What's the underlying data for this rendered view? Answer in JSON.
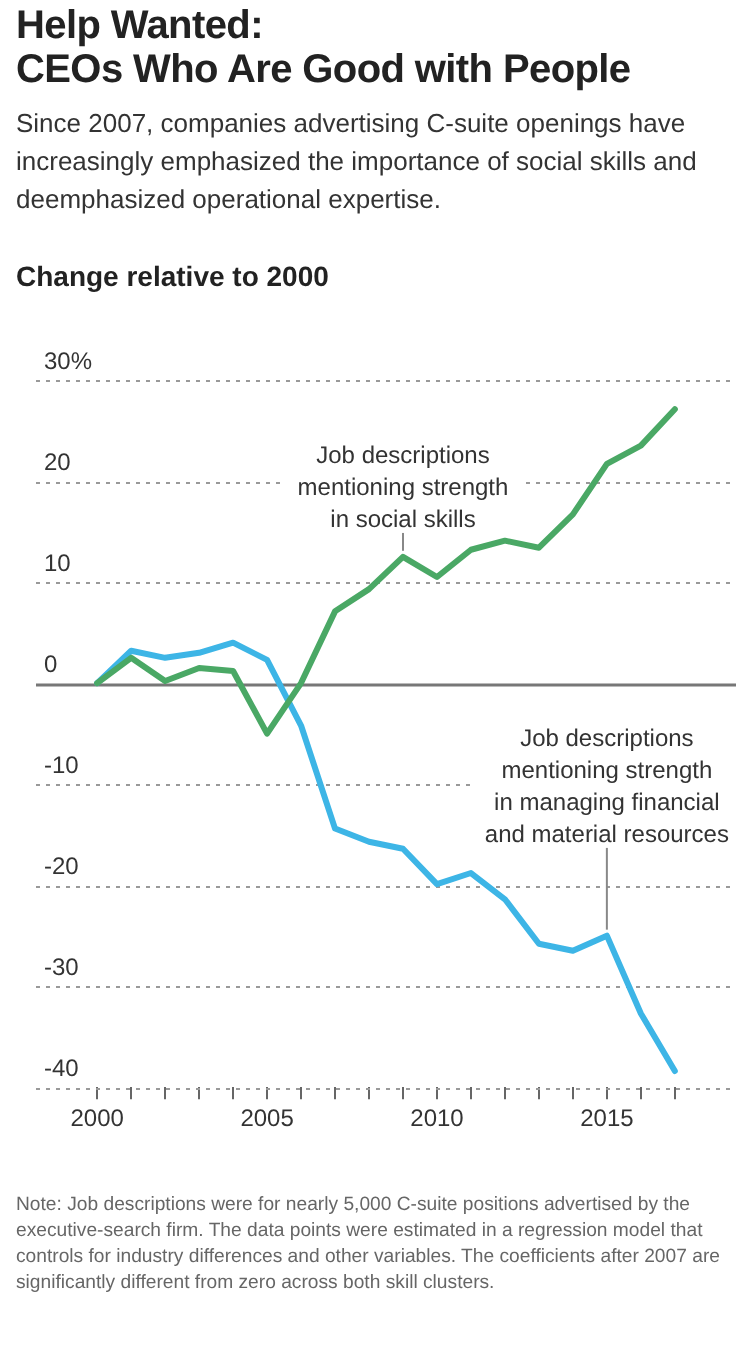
{
  "chart_data": {
    "type": "line",
    "title": "Help Wanted:\nCEOs Who Are Good with People",
    "subtitle": "Since 2007, companies advertising C-suite openings have increasingly emphasized the importance of social skills and deemphasized operational expertise.",
    "ylabel": "Change relative to 2000",
    "x": [
      2000,
      2001,
      2002,
      2003,
      2004,
      2005,
      2006,
      2007,
      2008,
      2009,
      2010,
      2011,
      2012,
      2013,
      2014,
      2015,
      2016,
      2017
    ],
    "series": [
      {
        "color": "#4aa865",
        "values": [
          0,
          2.5,
          0.2,
          1.5,
          1.2,
          -5,
          0,
          7.1,
          9.3,
          12.5,
          10.5,
          13.2,
          14.1,
          13.4,
          16.7,
          21.7,
          23.5,
          27.1
        ]
      },
      {
        "color": "#3db5e6",
        "values": [
          0,
          3.2,
          2.5,
          3,
          4,
          2.3,
          -4.2,
          -14.4,
          -15.7,
          -16.4,
          -19.9,
          -18.8,
          -21.4,
          -25.8,
          -26.5,
          -25,
          -32.7,
          -38.4
        ]
      }
    ],
    "xlim": [
      1998.2,
      2018.8
    ],
    "ylim": [
      -40,
      30
    ],
    "xticks": [
      2000,
      {
        "value": 2001,
        "label": null
      },
      {
        "value": 2002,
        "label": null
      },
      {
        "value": 2003,
        "label": null
      },
      {
        "value": 2004,
        "label": null
      },
      2005,
      {
        "value": 2006,
        "label": null
      },
      {
        "value": 2007,
        "label": null
      },
      {
        "value": 2008,
        "label": null
      },
      {
        "value": 2009,
        "label": null
      },
      2010,
      {
        "value": 2011,
        "label": null
      },
      {
        "value": 2012,
        "label": null
      },
      {
        "value": 2013,
        "label": null
      },
      {
        "value": 2014,
        "label": null
      },
      2015,
      {
        "value": 2016,
        "label": null
      },
      {
        "value": 2017,
        "label": null
      }
    ],
    "yticks": [
      -40,
      -30,
      -20,
      -10,
      0,
      10,
      20,
      {
        "value": 30,
        "label": "30%"
      }
    ],
    "grid": "y",
    "legend": false,
    "marker": "none",
    "line_style": "solid",
    "annotations": [
      {
        "text": "Job descriptions\nmentioning strength\nin social skills",
        "x": 2009,
        "y": 12.5
      },
      {
        "text": "Job descriptions\nmentioning strength\nin managing financial\nand material resources",
        "x": 2015,
        "y": -25
      },
      "Note: Job descriptions were for nearly 5,000 C-suite positions advertised by the executive-search firm. The data points were estimated in a regression model that controls for industry differences and other variables. The coefficients after 2007 are significantly different from zero across both skill clusters."
    ]
  }
}
